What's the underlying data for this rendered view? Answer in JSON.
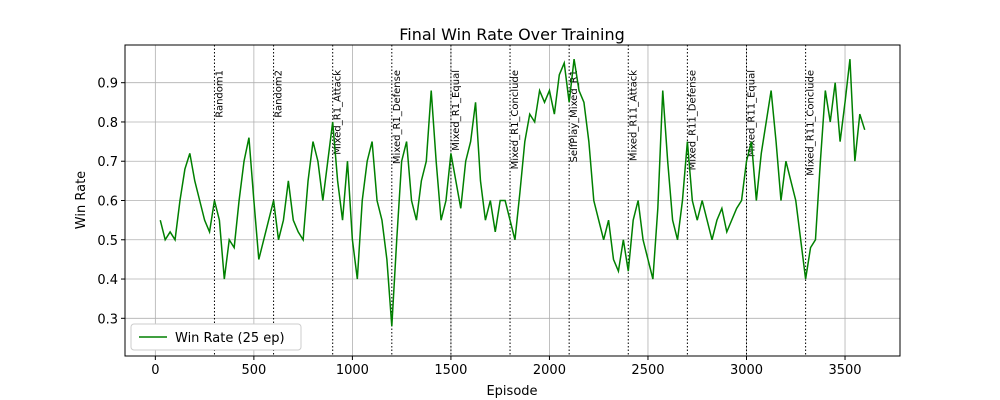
{
  "chart_data": {
    "type": "line",
    "title": "Final Win Rate Over Training",
    "x_label": "Episode",
    "y_label": "Win Rate",
    "x": [
      25,
      50,
      75,
      100,
      125,
      150,
      175,
      200,
      225,
      250,
      275,
      300,
      325,
      350,
      375,
      400,
      425,
      450,
      475,
      500,
      525,
      550,
      575,
      600,
      625,
      650,
      675,
      700,
      725,
      750,
      775,
      800,
      825,
      850,
      875,
      900,
      925,
      950,
      975,
      1000,
      1025,
      1050,
      1075,
      1100,
      1125,
      1150,
      1175,
      1200,
      1225,
      1250,
      1275,
      1300,
      1325,
      1350,
      1375,
      1400,
      1425,
      1450,
      1475,
      1500,
      1525,
      1550,
      1575,
      1600,
      1625,
      1650,
      1675,
      1700,
      1725,
      1750,
      1775,
      1800,
      1825,
      1850,
      1875,
      1900,
      1925,
      1950,
      1975,
      2000,
      2025,
      2050,
      2075,
      2100,
      2125,
      2150,
      2175,
      2200,
      2225,
      2250,
      2275,
      2300,
      2325,
      2350,
      2375,
      2400,
      2425,
      2450,
      2475,
      2500,
      2525,
      2550,
      2575,
      2600,
      2625,
      2650,
      2675,
      2700,
      2725,
      2750,
      2775,
      2800,
      2825,
      2850,
      2875,
      2900,
      2925,
      2950,
      2975,
      3000,
      3025,
      3050,
      3075,
      3100,
      3125,
      3150,
      3175,
      3200,
      3225,
      3250,
      3275,
      3300,
      3325,
      3350,
      3375,
      3400,
      3425,
      3450,
      3475,
      3500,
      3525,
      3550,
      3575,
      3600
    ],
    "series": [
      {
        "name": "Win Rate (25 ep)",
        "color": "#008000",
        "values": [
          0.55,
          0.5,
          0.52,
          0.5,
          0.6,
          0.68,
          0.72,
          0.65,
          0.6,
          0.55,
          0.52,
          0.6,
          0.55,
          0.4,
          0.5,
          0.48,
          0.6,
          0.7,
          0.76,
          0.6,
          0.45,
          0.5,
          0.55,
          0.6,
          0.5,
          0.55,
          0.65,
          0.55,
          0.52,
          0.5,
          0.65,
          0.75,
          0.7,
          0.6,
          0.7,
          0.8,
          0.65,
          0.55,
          0.7,
          0.5,
          0.4,
          0.6,
          0.7,
          0.75,
          0.6,
          0.55,
          0.45,
          0.28,
          0.5,
          0.7,
          0.75,
          0.6,
          0.55,
          0.65,
          0.7,
          0.88,
          0.7,
          0.55,
          0.6,
          0.72,
          0.65,
          0.58,
          0.7,
          0.75,
          0.85,
          0.65,
          0.55,
          0.6,
          0.52,
          0.6,
          0.6,
          0.55,
          0.5,
          0.62,
          0.75,
          0.82,
          0.8,
          0.88,
          0.85,
          0.88,
          0.82,
          0.92,
          0.95,
          0.85,
          0.96,
          0.88,
          0.85,
          0.75,
          0.6,
          0.55,
          0.5,
          0.55,
          0.45,
          0.42,
          0.5,
          0.42,
          0.55,
          0.6,
          0.5,
          0.45,
          0.4,
          0.58,
          0.88,
          0.7,
          0.55,
          0.5,
          0.6,
          0.75,
          0.6,
          0.55,
          0.6,
          0.55,
          0.5,
          0.55,
          0.58,
          0.52,
          0.55,
          0.58,
          0.6,
          0.7,
          0.75,
          0.6,
          0.72,
          0.8,
          0.88,
          0.75,
          0.6,
          0.7,
          0.65,
          0.6,
          0.5,
          0.4,
          0.48,
          0.5,
          0.7,
          0.88,
          0.8,
          0.9,
          0.75,
          0.85,
          0.96,
          0.7,
          0.82,
          0.78
        ]
      }
    ],
    "phases": [
      {
        "x": 300,
        "label": "Random1"
      },
      {
        "x": 600,
        "label": "Random2"
      },
      {
        "x": 900,
        "label": "Mixed_R1_Attack"
      },
      {
        "x": 1200,
        "label": "Mixed_R1_Defense"
      },
      {
        "x": 1500,
        "label": "Mixed_R1_Equal"
      },
      {
        "x": 1800,
        "label": "Mixed_R1_Conclude"
      },
      {
        "x": 2100,
        "label": "SelfPlay_Mixed_R1"
      },
      {
        "x": 2400,
        "label": "Mixed_R11_Attack"
      },
      {
        "x": 2700,
        "label": "Mixed_R11_Defense"
      },
      {
        "x": 3000,
        "label": "Mixed_R11_Equal"
      },
      {
        "x": 3300,
        "label": "Mixed_R11_Conclude"
      }
    ],
    "xlim": [
      -154,
      3779
    ],
    "ylim": [
      0.204,
      0.996
    ],
    "xticks": [
      0,
      500,
      1000,
      1500,
      2000,
      2500,
      3000,
      3500
    ],
    "yticks": [
      0.3,
      0.4,
      0.5,
      0.6,
      0.7,
      0.8,
      0.9
    ],
    "grid": true,
    "legend": "lower left"
  }
}
